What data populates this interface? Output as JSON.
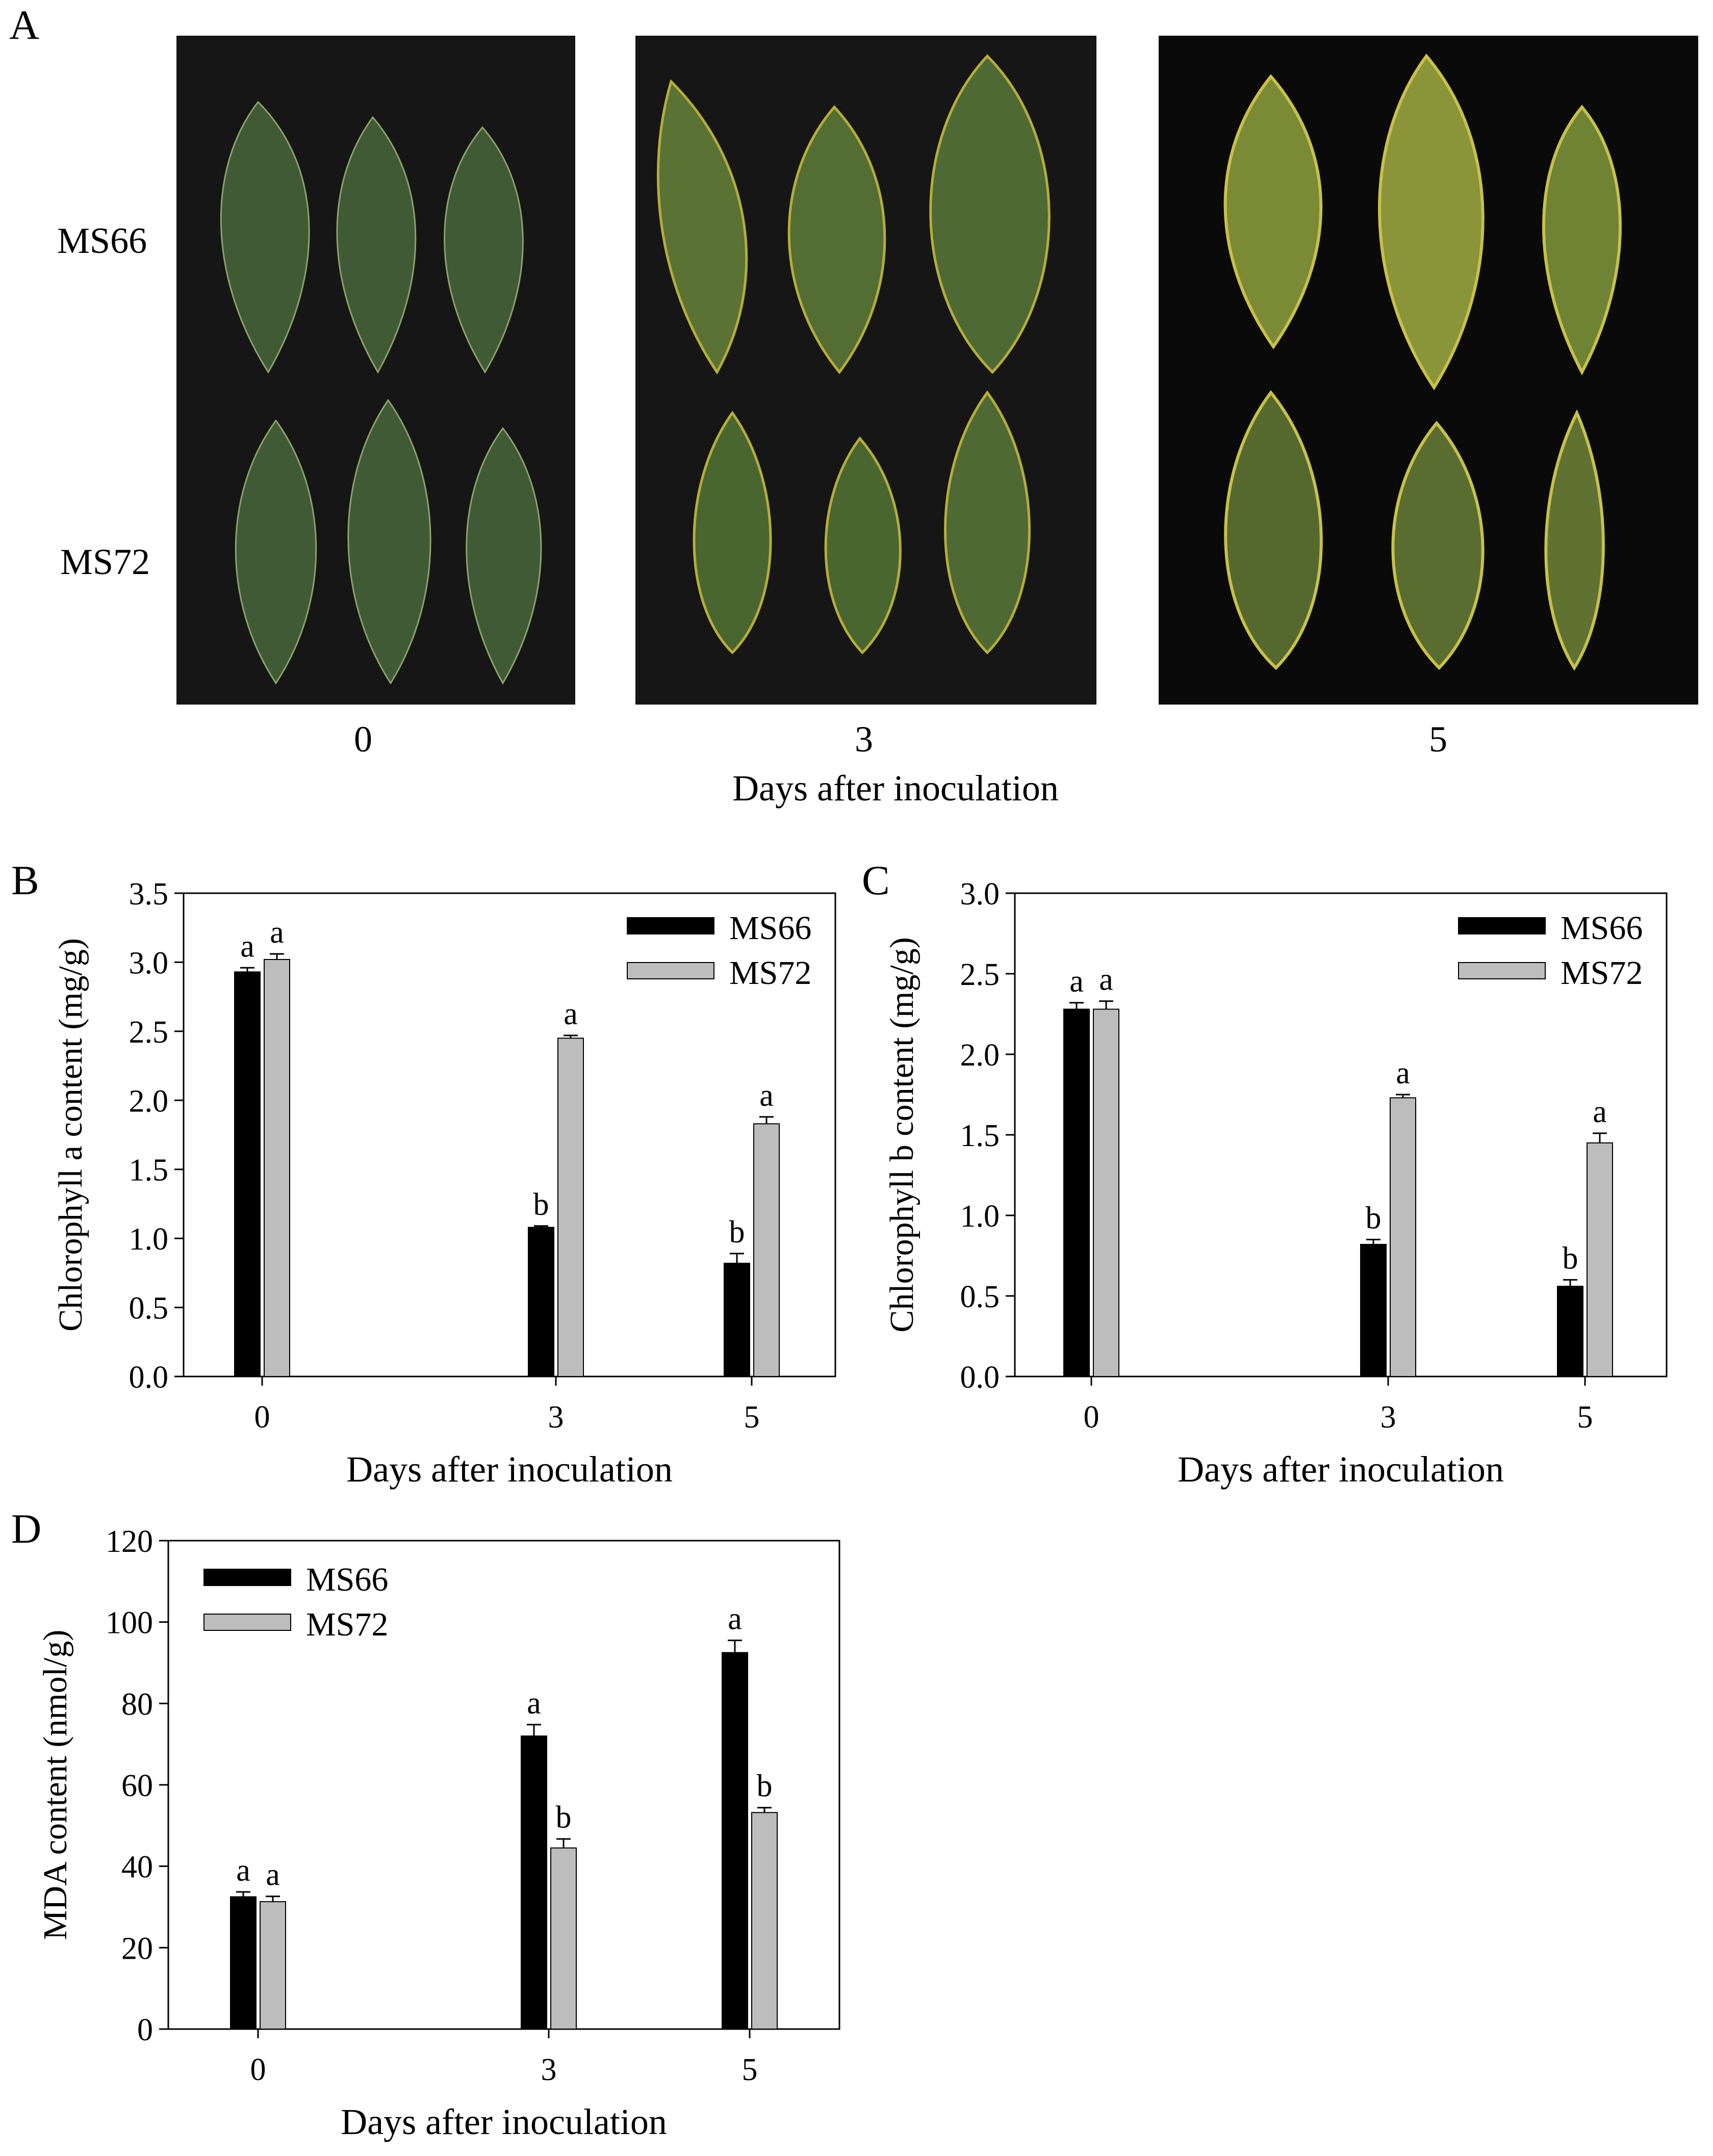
{
  "panel_a": {
    "letter": "A",
    "rows": [
      "MS66",
      "MS72"
    ],
    "days": [
      "0",
      "3",
      "5"
    ],
    "xlabel": "Days after inoculation"
  },
  "colors": {
    "ms66": "#000000",
    "ms72": "#bdbdbd",
    "photo_bg": "#161616",
    "healthy_leaf": "#3f5a34",
    "yellowing": "#b7ad3a"
  },
  "chart_data": [
    {
      "id": "B",
      "letter": "B",
      "type": "bar",
      "categories": [
        "0",
        "3",
        "5"
      ],
      "series": [
        {
          "name": "MS66",
          "values": [
            2.93,
            1.08,
            0.82
          ],
          "errors": [
            0.03,
            0.01,
            0.07
          ],
          "letters": [
            "a",
            "b",
            "b"
          ]
        },
        {
          "name": "MS72",
          "values": [
            3.02,
            2.45,
            1.83
          ],
          "errors": [
            0.04,
            0.02,
            0.05
          ],
          "letters": [
            "a",
            "a",
            "a"
          ]
        }
      ],
      "xlabel": "Days after inoculation",
      "ylabel": "Chlorophyll a content (mg/g)",
      "ylim": [
        0,
        3.5
      ],
      "yticks": [
        "0.0",
        "0.5",
        "1.0",
        "1.5",
        "2.0",
        "2.5",
        "3.0",
        "3.5"
      ],
      "legend": "top-right",
      "grid": false
    },
    {
      "id": "C",
      "letter": "C",
      "type": "bar",
      "categories": [
        "0",
        "3",
        "5"
      ],
      "series": [
        {
          "name": "MS66",
          "values": [
            2.28,
            0.82,
            0.56
          ],
          "errors": [
            0.04,
            0.03,
            0.04
          ],
          "letters": [
            "a",
            "b",
            "b"
          ]
        },
        {
          "name": "MS72",
          "values": [
            2.28,
            1.73,
            1.45
          ],
          "errors": [
            0.05,
            0.02,
            0.06
          ],
          "letters": [
            "a",
            "a",
            "a"
          ]
        }
      ],
      "xlabel": "Days after inoculation",
      "ylabel": "Chlorophyll b content (mg/g)",
      "ylim": [
        0,
        3.0
      ],
      "yticks": [
        "0.0",
        "0.5",
        "1.0",
        "1.5",
        "2.0",
        "2.5",
        "3.0"
      ],
      "legend": "top-right",
      "grid": false
    },
    {
      "id": "D",
      "letter": "D",
      "type": "bar",
      "categories": [
        "0",
        "3",
        "5"
      ],
      "series": [
        {
          "name": "MS66",
          "values": [
            32.5,
            72,
            92.5
          ],
          "errors": [
            1.2,
            2.8,
            3.0
          ],
          "letters": [
            "a",
            "a",
            "a"
          ]
        },
        {
          "name": "MS72",
          "values": [
            31.3,
            44.5,
            53.2
          ],
          "errors": [
            1.3,
            2.2,
            1.2
          ],
          "letters": [
            "a",
            "b",
            "b"
          ]
        }
      ],
      "xlabel": "Days after inoculation",
      "ylabel": "MDA content (nmol/g)",
      "ylim": [
        0,
        120
      ],
      "yticks": [
        "0",
        "20",
        "40",
        "60",
        "80",
        "100",
        "120"
      ],
      "legend": "top-left",
      "grid": false
    }
  ]
}
